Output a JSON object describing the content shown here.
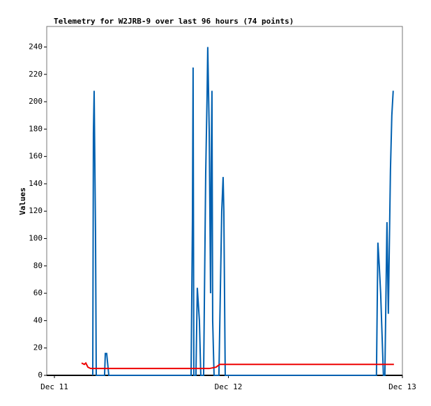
{
  "chart_data": {
    "type": "line",
    "title": "Telemetry for W2JRB-9 over last 96 hours (74 points)",
    "y_label": "Values",
    "xlim": [
      -1.06,
      48
    ],
    "xticks": [
      {
        "value": 0,
        "label": "Dec 11"
      },
      {
        "value": 24,
        "label": "Dec 12"
      },
      {
        "value": 48,
        "label": "Dec 13"
      }
    ],
    "ylim": [
      0,
      255
    ],
    "yticks": [
      0,
      20,
      40,
      60,
      80,
      100,
      120,
      140,
      160,
      180,
      200,
      220,
      240
    ],
    "series": [
      {
        "color": "#0060b0",
        "x": [
          5.29,
          5.38,
          5.48,
          5.67,
          5.77,
          6.92,
          7.02,
          7.21,
          7.5,
          18.85,
          19.04,
          19.13,
          19.23,
          19.52,
          19.71,
          20,
          20.19,
          20.58,
          20.87,
          21.06,
          21.15,
          21.35,
          21.54,
          21.63,
          21.73,
          21.83,
          22.02,
          22.69,
          23.08,
          23.27,
          23.37,
          23.56,
          44.42,
          44.62,
          44.81,
          45,
          45.19,
          45.38,
          45.58,
          45.87,
          46.06,
          46.35,
          46.54,
          46.73
        ],
        "values": [
          0,
          177,
          208,
          104,
          0,
          0,
          16,
          16,
          0,
          0,
          113,
          225,
          0,
          0,
          64,
          40,
          0,
          0,
          148,
          205,
          240,
          180,
          60,
          155,
          208,
          40,
          0,
          0,
          120,
          145,
          120,
          0,
          0,
          97,
          80,
          60,
          30,
          0,
          0,
          112,
          45,
          150,
          190,
          208
        ]
      },
      {
        "color": "#ee0000",
        "x": [
          3.75,
          4.13,
          4.33,
          4.62,
          5,
          7.88,
          21.35,
          22.31,
          22.79,
          44.42,
          46.83
        ],
        "values": [
          9,
          8,
          9,
          6,
          5,
          5,
          5,
          6,
          8,
          8,
          8
        ]
      }
    ]
  }
}
